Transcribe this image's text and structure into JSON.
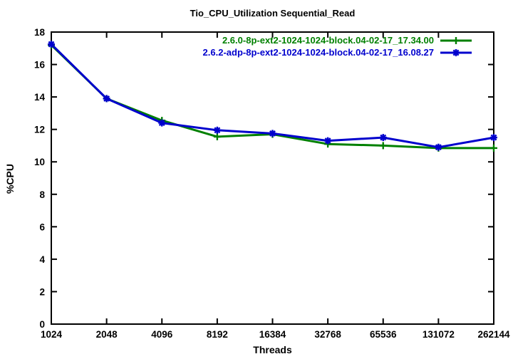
{
  "chart_data": {
    "type": "line",
    "title": "Tio_CPU_Utilization Sequential_Read",
    "xlabel": "Threads",
    "ylabel": "%CPU",
    "x_scale": "log2",
    "categories": [
      "1024",
      "2048",
      "4096",
      "8192",
      "16384",
      "32768",
      "65536",
      "131072",
      "262144"
    ],
    "yticks": [
      "0",
      "2",
      "4",
      "6",
      "8",
      "10",
      "12",
      "14",
      "16",
      "18"
    ],
    "ylim": [
      0,
      18
    ],
    "grid": false,
    "legend_position": "top-right-inside",
    "background_color": "#ffffff",
    "axis_color": "#000000",
    "series": [
      {
        "name": "2.6.0-8p-ext2-1024-1024-block.04-02-17_17.34.00",
        "color": "#008000",
        "marker": "plus",
        "values": [
          17.2,
          13.9,
          12.55,
          11.55,
          11.7,
          11.1,
          11.0,
          10.85,
          10.85
        ]
      },
      {
        "name": "2.6.2-adp-8p-ext2-1024-1024-block.04-02-17_16.08.27",
        "color": "#0000cd",
        "marker": "asterisk",
        "values": [
          17.25,
          13.9,
          12.4,
          11.95,
          11.75,
          11.3,
          11.5,
          10.9,
          11.5
        ]
      }
    ]
  }
}
